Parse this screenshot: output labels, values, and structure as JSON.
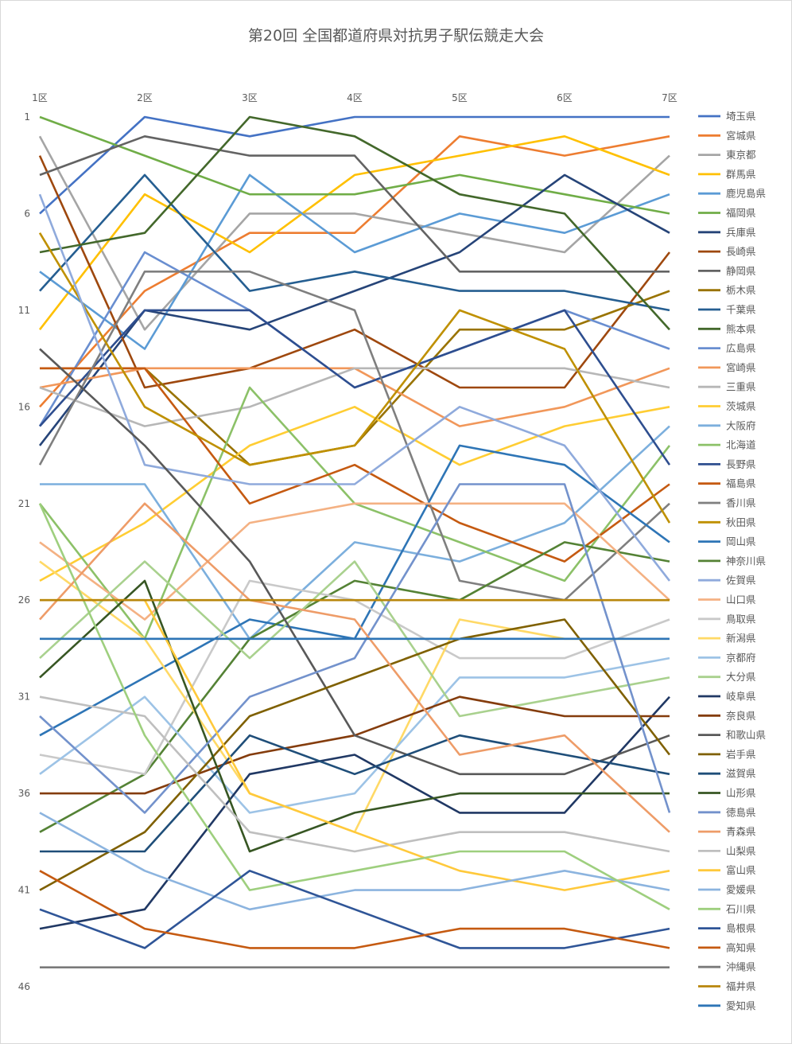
{
  "chart_data": {
    "type": "line",
    "title": "第20回 全国都道府県対抗男子駅伝競走大会",
    "categories": [
      "1区",
      "2区",
      "3区",
      "4区",
      "5区",
      "6区",
      "7区"
    ],
    "y_axis": {
      "min": 1,
      "max": 46,
      "reversed": true,
      "ticks": [
        1,
        6,
        11,
        16,
        21,
        26,
        31,
        36,
        41,
        46
      ]
    },
    "x_axis_position": "top",
    "legend_position": "right",
    "grid": false,
    "series": [
      {
        "name": "埼玉県",
        "color": "#4472C4",
        "values": [
          6,
          1,
          2,
          1,
          1,
          1,
          1
        ]
      },
      {
        "name": "宮城県",
        "color": "#ED7D31",
        "values": [
          16,
          10,
          7,
          7,
          2,
          3,
          2
        ]
      },
      {
        "name": "東京都",
        "color": "#A5A5A5",
        "values": [
          2,
          12,
          6,
          6,
          7,
          8,
          3
        ]
      },
      {
        "name": "群馬県",
        "color": "#FFC000",
        "values": [
          12,
          5,
          8,
          4,
          3,
          2,
          4
        ]
      },
      {
        "name": "鹿児島県",
        "color": "#5B9BD5",
        "values": [
          9,
          13,
          4,
          8,
          6,
          7,
          5
        ]
      },
      {
        "name": "福岡県",
        "color": "#70AD47",
        "values": [
          1,
          3,
          5,
          5,
          4,
          5,
          6
        ]
      },
      {
        "name": "兵庫県",
        "color": "#264478",
        "values": [
          18,
          11,
          12,
          10,
          8,
          4,
          7
        ]
      },
      {
        "name": "長崎県",
        "color": "#9E480E",
        "values": [
          3,
          15,
          14,
          12,
          15,
          15,
          8
        ]
      },
      {
        "name": "静岡県",
        "color": "#636363",
        "values": [
          4,
          2,
          3,
          3,
          9,
          9,
          9
        ]
      },
      {
        "name": "栃木県",
        "color": "#997300",
        "values": [
          14,
          14,
          19,
          18,
          12,
          12,
          10
        ]
      },
      {
        "name": "千葉県",
        "color": "#255E91",
        "values": [
          10,
          4,
          10,
          9,
          10,
          10,
          11
        ]
      },
      {
        "name": "熊本県",
        "color": "#43682B",
        "values": [
          8,
          7,
          1,
          2,
          5,
          6,
          12
        ]
      },
      {
        "name": "広島県",
        "color": "#698ED0",
        "values": [
          17,
          8,
          11,
          15,
          13,
          11,
          13
        ]
      },
      {
        "name": "宮崎県",
        "color": "#F1975A",
        "values": [
          15,
          14,
          14,
          14,
          17,
          16,
          14
        ]
      },
      {
        "name": "三重県",
        "color": "#B7B7B7",
        "values": [
          15,
          17,
          16,
          14,
          14,
          14,
          15
        ]
      },
      {
        "name": "茨城県",
        "color": "#FFCD33",
        "values": [
          25,
          22,
          18,
          16,
          19,
          17,
          16
        ]
      },
      {
        "name": "大阪府",
        "color": "#7CAFDD",
        "values": [
          20,
          20,
          28,
          23,
          24,
          22,
          17
        ]
      },
      {
        "name": "北海道",
        "color": "#8CC168",
        "values": [
          21,
          28,
          15,
          21,
          23,
          25,
          18
        ]
      },
      {
        "name": "長野県",
        "color": "#2E4E8F",
        "values": [
          17,
          11,
          11,
          15,
          13,
          11,
          19
        ]
      },
      {
        "name": "福島県",
        "color": "#C55A11",
        "values": [
          14,
          14,
          21,
          19,
          22,
          24,
          20
        ]
      },
      {
        "name": "香川県",
        "color": "#7F7F7F",
        "values": [
          19,
          9,
          9,
          11,
          25,
          26,
          21
        ]
      },
      {
        "name": "秋田県",
        "color": "#BF9000",
        "values": [
          7,
          16,
          19,
          18,
          11,
          13,
          22
        ]
      },
      {
        "name": "岡山県",
        "color": "#2E75B6",
        "values": [
          33,
          30,
          27,
          28,
          18,
          19,
          23
        ]
      },
      {
        "name": "神奈川県",
        "color": "#548235",
        "values": [
          38,
          35,
          28,
          25,
          26,
          23,
          24
        ]
      },
      {
        "name": "佐賀県",
        "color": "#8FAADC",
        "values": [
          5,
          19,
          20,
          20,
          16,
          18,
          25
        ]
      },
      {
        "name": "山口県",
        "color": "#F4B183",
        "values": [
          23,
          27,
          22,
          21,
          21,
          21,
          26
        ]
      },
      {
        "name": "鳥取県",
        "color": "#C9C9C9",
        "values": [
          34,
          35,
          25,
          26,
          29,
          29,
          27
        ]
      },
      {
        "name": "新潟県",
        "color": "#FFD966",
        "values": [
          24,
          28,
          36,
          38,
          27,
          28,
          28
        ]
      },
      {
        "name": "京都府",
        "color": "#9DC3E6",
        "values": [
          35,
          31,
          37,
          36,
          30,
          30,
          29
        ]
      },
      {
        "name": "大分県",
        "color": "#A9D18E",
        "values": [
          29,
          24,
          29,
          24,
          32,
          31,
          30
        ]
      },
      {
        "name": "岐阜県",
        "color": "#203864",
        "values": [
          43,
          42,
          35,
          34,
          37,
          37,
          31
        ]
      },
      {
        "name": "奈良県",
        "color": "#843C0C",
        "values": [
          36,
          36,
          34,
          33,
          31,
          32,
          32
        ]
      },
      {
        "name": "和歌山県",
        "color": "#595959",
        "values": [
          13,
          18,
          24,
          33,
          35,
          35,
          33
        ]
      },
      {
        "name": "岩手県",
        "color": "#7F6000",
        "values": [
          41,
          38,
          32,
          30,
          28,
          27,
          34
        ]
      },
      {
        "name": "滋賀県",
        "color": "#1F4E79",
        "values": [
          39,
          39,
          33,
          35,
          33,
          34,
          35
        ]
      },
      {
        "name": "山形県",
        "color": "#375623",
        "values": [
          30,
          25,
          39,
          37,
          36,
          36,
          36
        ]
      },
      {
        "name": "徳島県",
        "color": "#7392CC",
        "values": [
          32,
          37,
          31,
          29,
          20,
          20,
          37
        ]
      },
      {
        "name": "青森県",
        "color": "#EE9C68",
        "values": [
          27,
          21,
          26,
          27,
          34,
          33,
          38
        ]
      },
      {
        "name": "山梨県",
        "color": "#BFBFBF",
        "values": [
          31,
          32,
          38,
          39,
          38,
          38,
          39
        ]
      },
      {
        "name": "富山県",
        "color": "#FFC93B",
        "values": [
          26,
          26,
          36,
          38,
          40,
          41,
          40
        ]
      },
      {
        "name": "愛媛県",
        "color": "#8CB4DF",
        "values": [
          37,
          40,
          42,
          41,
          41,
          40,
          41
        ]
      },
      {
        "name": "石川県",
        "color": "#9ECF7E",
        "values": [
          21,
          33,
          41,
          40,
          39,
          39,
          42
        ]
      },
      {
        "name": "島根県",
        "color": "#2F5597",
        "values": [
          42,
          44,
          40,
          42,
          44,
          44,
          43
        ]
      },
      {
        "name": "高知県",
        "color": "#C55A11",
        "values": [
          40,
          43,
          44,
          44,
          43,
          43,
          44
        ]
      },
      {
        "name": "沖縄県",
        "color": "#7A7A7A",
        "values": [
          45,
          45,
          45,
          45,
          45,
          45,
          45
        ]
      },
      {
        "name": "福井県",
        "color": "#B8860B",
        "values": [
          26,
          26,
          26,
          26,
          26,
          26,
          26
        ]
      },
      {
        "name": "愛知県",
        "color": "#2E75B6",
        "values": [
          28,
          28,
          28,
          28,
          28,
          28,
          28
        ]
      }
    ]
  }
}
